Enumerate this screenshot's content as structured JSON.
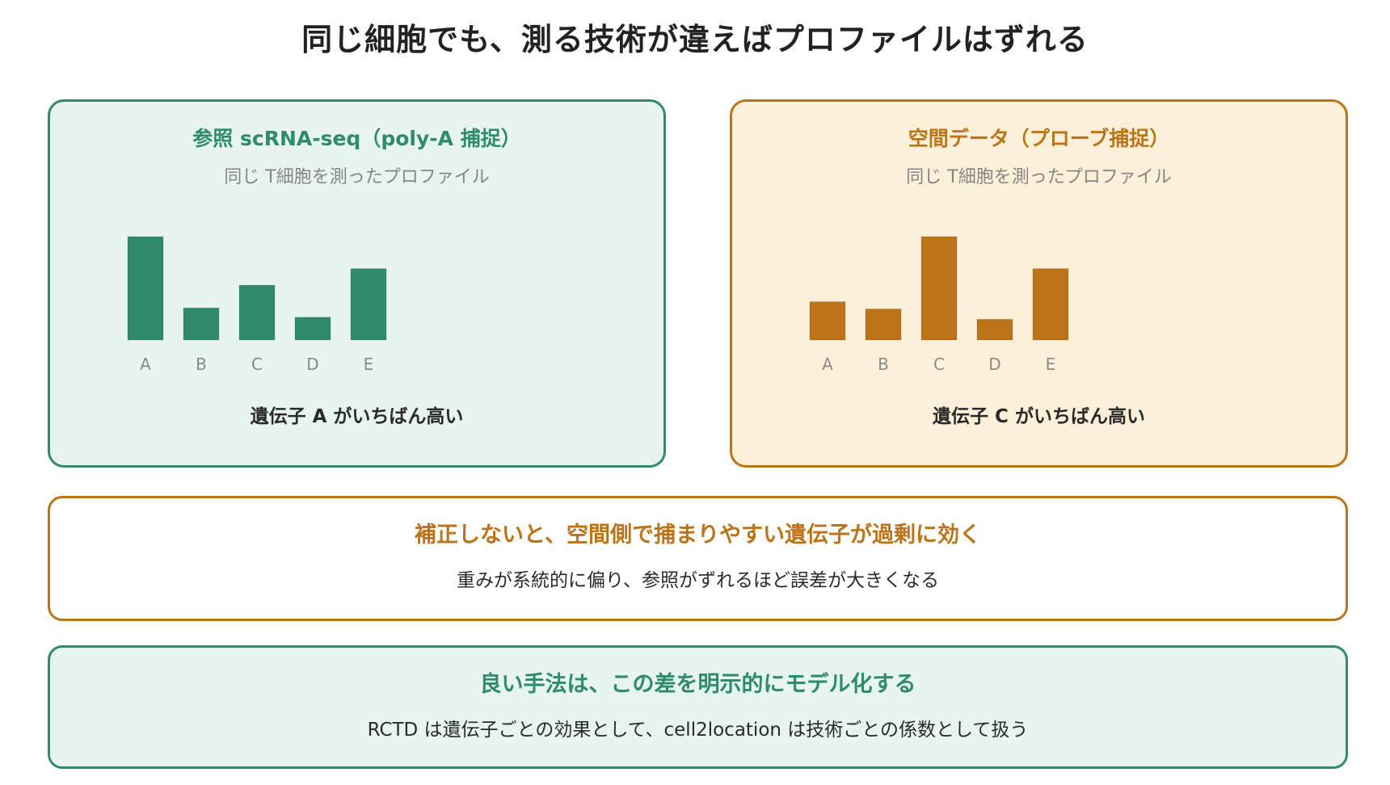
{
  "title": "同じ細胞でも、測る技術が違えばプロファイルはずれる",
  "colors": {
    "green": "#2e8b6b",
    "orange": "#bc7419",
    "green_bg": "#e8f4ee",
    "orange_bg": "#fdf0d9"
  },
  "panels": [
    {
      "title": "参照 scRNA-seq（poly-A 捕捉）",
      "subtitle": "同じ T細胞を測ったプロファイル",
      "caption": "遺伝子 A がいちばん高い"
    },
    {
      "title": "空間データ（プローブ捕捉）",
      "subtitle": "同じ T細胞を測ったプロファイル",
      "caption": "遺伝子 C がいちばん高い"
    }
  ],
  "chart_data": [
    {
      "type": "bar",
      "categories": [
        "A",
        "B",
        "C",
        "D",
        "E"
      ],
      "values": [
        100,
        31,
        53,
        22,
        69
      ],
      "ylim": [
        0,
        100
      ]
    },
    {
      "type": "bar",
      "categories": [
        "A",
        "B",
        "C",
        "D",
        "E"
      ],
      "values": [
        37,
        30,
        100,
        20,
        69
      ],
      "ylim": [
        0,
        100
      ]
    }
  ],
  "warning": {
    "title": "補正しないと、空間側で捕まりやすい遺伝子が過剰に効く",
    "text": "重みが系統的に偏り、参照がずれるほど誤差が大きくなる"
  },
  "solution": {
    "title": "良い手法は、この差を明示的にモデル化する",
    "text": "RCTD は遺伝子ごとの効果として、cell2location は技術ごとの係数として扱う"
  }
}
